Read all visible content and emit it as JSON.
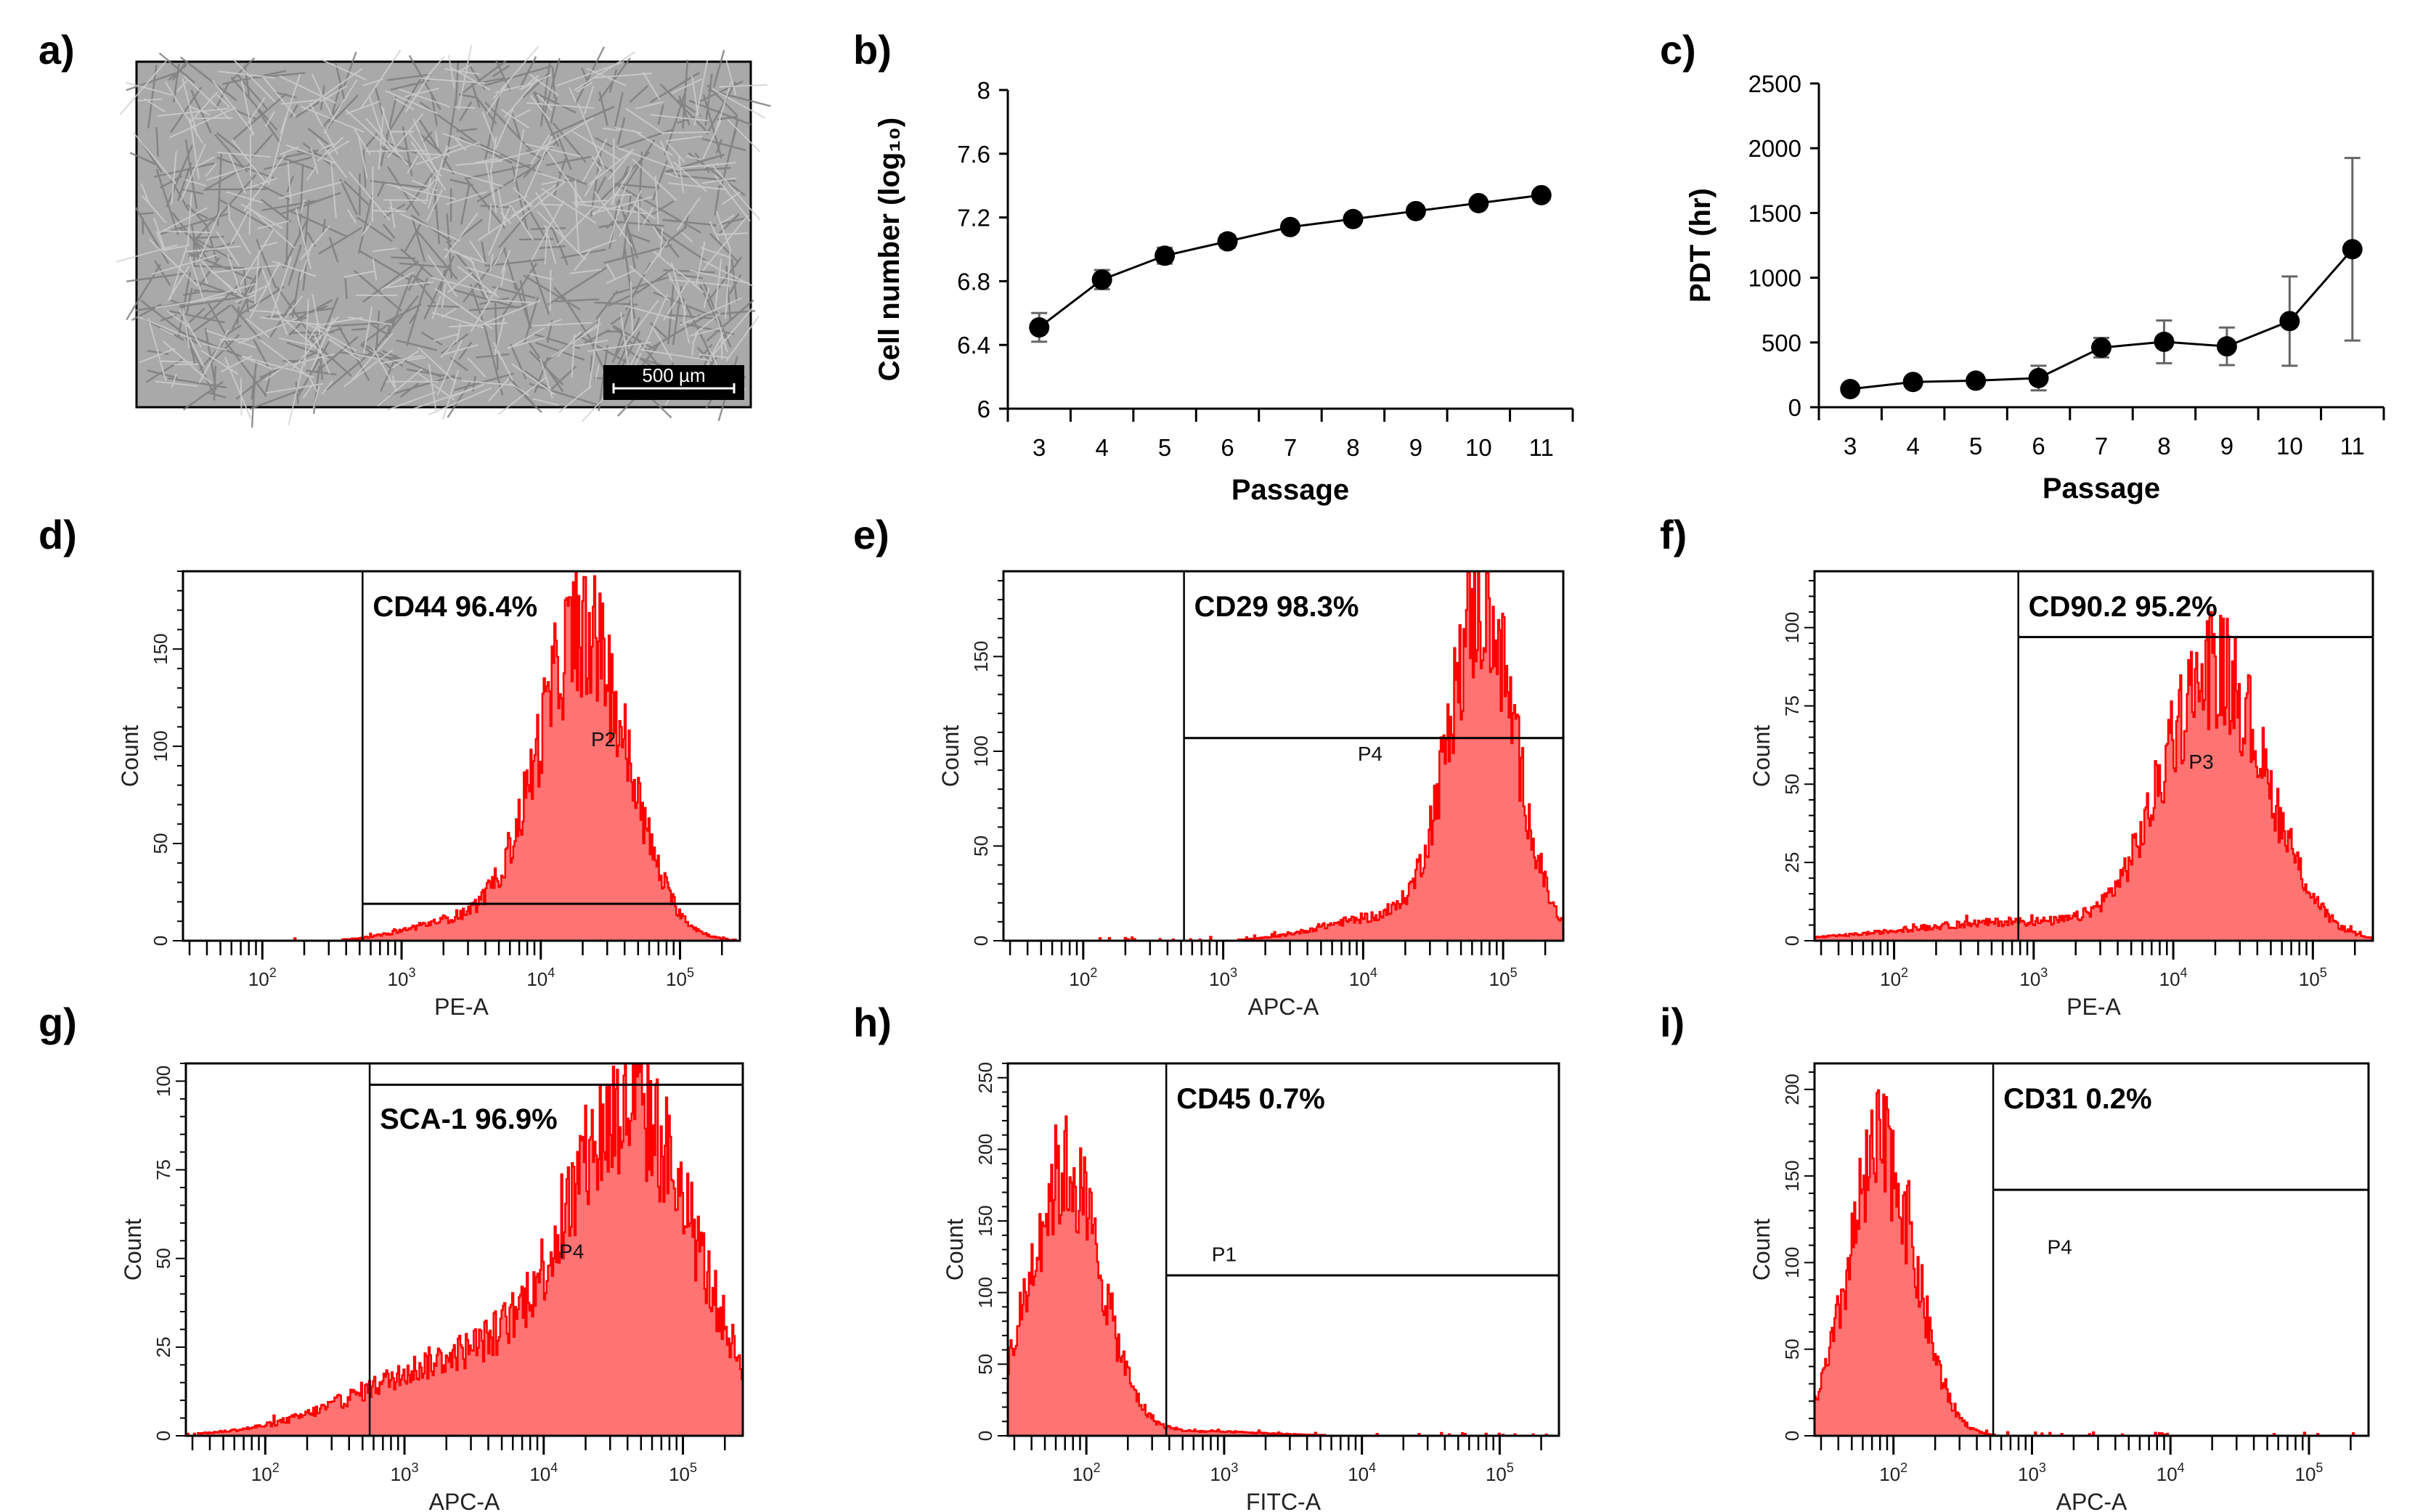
{
  "panel_labels": {
    "a": "a)",
    "b": "b)",
    "c": "c)",
    "d": "d)",
    "e": "e)",
    "f": "f)",
    "g": "g)",
    "h": "h)",
    "i": "i)"
  },
  "micrograph": {
    "scale_bar": "500 µm"
  },
  "colors": {
    "hist_fill": "#ff7373",
    "hist_line": "#ff0000",
    "error_bar": "#666666",
    "marker": "#000000"
  },
  "chart_data": [
    {
      "panel": "b",
      "type": "line",
      "title": "",
      "xlabel": "Passage",
      "ylabel": "Cell number (log₁₀)",
      "categories": [
        "3",
        "4",
        "5",
        "6",
        "7",
        "8",
        "9",
        "10",
        "11"
      ],
      "values": [
        6.51,
        6.81,
        6.96,
        7.05,
        7.14,
        7.19,
        7.24,
        7.29,
        7.34
      ],
      "errors": [
        0.09,
        0.06,
        0.05,
        0.04,
        0.02,
        0.02,
        0.02,
        0.02,
        0.03
      ],
      "ylim": [
        6,
        8
      ],
      "yticks": [
        "6",
        "6.4",
        "6.8",
        "7.2",
        "7.6",
        "8"
      ],
      "grid": false
    },
    {
      "panel": "c",
      "type": "line",
      "title": "",
      "xlabel": "Passage",
      "ylabel": "PDT (hr)",
      "categories": [
        "3",
        "4",
        "5",
        "6",
        "7",
        "8",
        "9",
        "10",
        "11"
      ],
      "values": [
        140,
        195,
        205,
        225,
        460,
        505,
        470,
        665,
        1220
      ],
      "errors": [
        0,
        0,
        0,
        95,
        75,
        165,
        145,
        345,
        705
      ],
      "ylim": [
        0,
        2500
      ],
      "yticks": [
        "0",
        "500",
        "1000",
        "1500",
        "2000",
        "2500"
      ],
      "grid": false
    },
    {
      "panel": "d",
      "type": "histogram",
      "marker": "CD44 96.4%",
      "gate": "P2",
      "xlabel": "PE-A",
      "ylabel": "Count",
      "xlog_range": [
        1.43,
        5.43
      ],
      "x_tick_base": "10",
      "x_tick_exponents": [
        "2",
        "3",
        "4",
        "5"
      ],
      "ylim": [
        0,
        190
      ],
      "yticks": [
        "0",
        "50",
        "100",
        "150"
      ],
      "gate_x_log": 2.72,
      "gate_y": 19,
      "gate_label_at": [
        4.45,
        100
      ],
      "marker_at_top": true,
      "components": [
        {
          "mu": 4.3,
          "sigma": 0.32,
          "peak": 160
        },
        {
          "mu": 3.4,
          "sigma": 0.35,
          "peak": 10
        }
      ]
    },
    {
      "panel": "e",
      "type": "histogram",
      "marker": "CD29 98.3%",
      "gate": "P4",
      "xlabel": "APC-A",
      "ylabel": "Count",
      "xlog_range": [
        1.43,
        5.43
      ],
      "x_tick_base": "10",
      "x_tick_exponents": [
        "2",
        "3",
        "4",
        "5"
      ],
      "ylim": [
        0,
        195
      ],
      "yticks": [
        "0",
        "50",
        "100",
        "150"
      ],
      "gate_x_log": 2.72,
      "gate_y": 107,
      "gate_label_at": [
        4.05,
        95
      ],
      "marker_at_top": true,
      "components": [
        {
          "mu": 4.85,
          "sigma": 0.24,
          "peak": 175
        },
        {
          "mu": 4.1,
          "sigma": 0.4,
          "peak": 12
        }
      ]
    },
    {
      "panel": "f",
      "type": "histogram",
      "marker": "CD90.2 95.2%",
      "gate": "P3",
      "xlabel": "PE-A",
      "ylabel": "Count",
      "xlog_range": [
        1.43,
        5.43
      ],
      "x_tick_base": "10",
      "x_tick_exponents": [
        "2",
        "3",
        "4",
        "5"
      ],
      "ylim": [
        0,
        118
      ],
      "yticks": [
        "0",
        "25",
        "50",
        "75",
        "100"
      ],
      "gate_x_log": 2.89,
      "gate_y": 97,
      "gate_label_at": [
        4.2,
        55
      ],
      "marker_at_top": true,
      "components": [
        {
          "mu": 4.3,
          "sigma": 0.37,
          "peak": 86
        },
        {
          "mu": 2.9,
          "sigma": 0.8,
          "peak": 6
        }
      ]
    },
    {
      "panel": "g",
      "type": "histogram",
      "marker": "SCA-1 96.9%",
      "gate": "P4",
      "xlabel": "APC-A",
      "ylabel": "Count",
      "xlog_range": [
        1.43,
        5.43
      ],
      "x_tick_base": "10",
      "x_tick_exponents": [
        "2",
        "3",
        "4",
        "5"
      ],
      "ylim": [
        0,
        105
      ],
      "yticks": [
        "0",
        "25",
        "50",
        "75",
        "100"
      ],
      "gate_x_log": 2.75,
      "gate_y": 99,
      "gate_label_at": [
        4.2,
        50
      ],
      "marker_at_top": false,
      "components": [
        {
          "mu": 4.65,
          "sigma": 0.45,
          "peak": 86
        },
        {
          "mu": 3.5,
          "sigma": 0.75,
          "peak": 22
        }
      ]
    },
    {
      "panel": "h",
      "type": "histogram",
      "marker": "CD45 0.7%",
      "gate": "P1",
      "xlabel": "FITC-A",
      "ylabel": "Count",
      "xlog_range": [
        1.43,
        5.43
      ],
      "x_tick_base": "10",
      "x_tick_exponents": [
        "2",
        "3",
        "4",
        "5"
      ],
      "ylim": [
        0,
        260
      ],
      "yticks": [
        "0",
        "50",
        "100",
        "150",
        "200",
        "250"
      ],
      "gate_x_log": 2.58,
      "gate_y": 112,
      "gate_label_at": [
        3.0,
        122
      ],
      "marker_at_top": true,
      "components": [
        {
          "mu": 1.85,
          "sigma": 0.26,
          "peak": 185
        },
        {
          "mu": 2.8,
          "sigma": 0.5,
          "peak": 3
        }
      ]
    },
    {
      "panel": "i",
      "type": "histogram",
      "marker": "CD31 0.2%",
      "gate": "P4",
      "xlabel": "APC-A",
      "ylabel": "Count",
      "xlog_range": [
        1.43,
        5.43
      ],
      "x_tick_base": "10",
      "x_tick_exponents": [
        "2",
        "3",
        "4",
        "5"
      ],
      "ylim": [
        0,
        215
      ],
      "yticks": [
        "0",
        "50",
        "100",
        "150",
        "200"
      ],
      "gate_x_log": 2.72,
      "gate_y": 142,
      "gate_label_at": [
        3.2,
        105
      ],
      "marker_at_top": true,
      "components": [
        {
          "mu": 1.92,
          "sigma": 0.24,
          "peak": 165
        }
      ]
    }
  ]
}
